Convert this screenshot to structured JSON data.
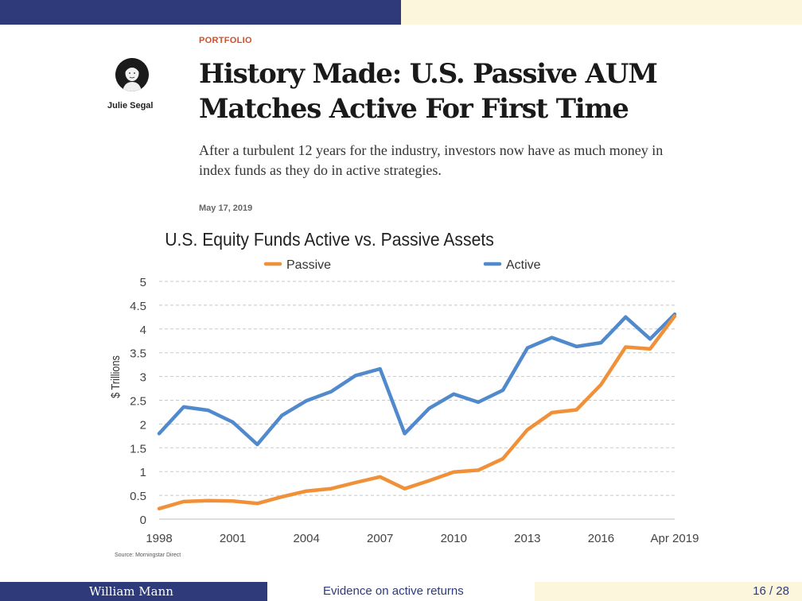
{
  "article": {
    "category": "PORTFOLIO",
    "author": "Julie Segal",
    "headline_line1": "History Made: U.S. Passive AUM",
    "headline_line2": "Matches Active For First Time",
    "dek": "After a turbulent 12 years for the industry, investors now have as much money in index funds as they do in active strategies.",
    "date": "May 17, 2019"
  },
  "chart_data": {
    "type": "line",
    "title": "U.S. Equity Funds Active vs. Passive Assets",
    "ylabel": "$ Trillions",
    "source": "Source: Morningstar Direct",
    "ylim": [
      0,
      5
    ],
    "yticks": [
      "0",
      "0.5",
      "1",
      "1.5",
      "2",
      "2.5",
      "3",
      "3.5",
      "4",
      "4.5",
      "5"
    ],
    "xlabels": [
      "1998",
      "2001",
      "2004",
      "2007",
      "2010",
      "2013",
      "2016",
      "Apr 2019"
    ],
    "x": [
      1998,
      1999,
      2000,
      2001,
      2002,
      2003,
      2004,
      2005,
      2006,
      2007,
      2008,
      2009,
      2010,
      2011,
      2012,
      2013,
      2014,
      2015,
      2016,
      2017,
      2018,
      2019
    ],
    "grid": true,
    "legend_position": "top",
    "series": [
      {
        "name": "Passive",
        "color": "#f0913a",
        "values": [
          0.22,
          0.37,
          0.39,
          0.38,
          0.33,
          0.47,
          0.59,
          0.64,
          0.77,
          0.89,
          0.64,
          0.81,
          0.99,
          1.03,
          1.27,
          1.88,
          2.24,
          2.3,
          2.83,
          3.62,
          3.58,
          4.27
        ]
      },
      {
        "name": "Active",
        "color": "#5089cc",
        "values": [
          1.8,
          2.36,
          2.29,
          2.04,
          1.57,
          2.18,
          2.49,
          2.68,
          3.02,
          3.16,
          1.8,
          2.33,
          2.63,
          2.46,
          2.71,
          3.6,
          3.82,
          3.63,
          3.71,
          4.25,
          3.79,
          4.31
        ]
      }
    ]
  },
  "footer": {
    "author": "William Mann",
    "title": "Evidence on active returns",
    "page": "16 / 28"
  }
}
